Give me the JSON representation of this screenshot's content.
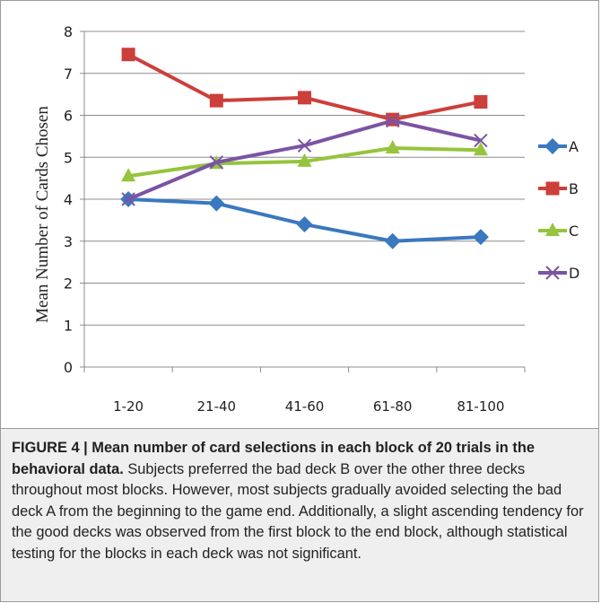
{
  "chart_data": {
    "type": "line",
    "title": "",
    "xlabel": "",
    "ylabel": "Mean Number of Cards Chosen",
    "categories": [
      "1-20",
      "21-40",
      "41-60",
      "61-80",
      "81-100"
    ],
    "ylim": [
      0,
      8
    ],
    "yticks": [
      "0",
      "1",
      "2",
      "3",
      "4",
      "5",
      "6",
      "7",
      "8"
    ],
    "grid": true,
    "legend_position": "right",
    "series": [
      {
        "name": "A",
        "values": [
          4.0,
          3.9,
          3.4,
          3.0,
          3.1
        ],
        "color": "#3a78c0",
        "marker": "diamond"
      },
      {
        "name": "B",
        "values": [
          7.45,
          6.35,
          6.42,
          5.9,
          6.32
        ],
        "color": "#cc3f3a",
        "marker": "square"
      },
      {
        "name": "C",
        "values": [
          4.55,
          4.85,
          4.9,
          5.22,
          5.17
        ],
        "color": "#96c43c",
        "marker": "triangle"
      },
      {
        "name": "D",
        "values": [
          4.0,
          4.88,
          5.28,
          5.87,
          5.4
        ],
        "color": "#7b54a3",
        "marker": "x"
      }
    ]
  },
  "caption": {
    "title": "FIGURE 4 | Mean number of card selections in each block of 20 trials in the behavioral data.",
    "body": " Subjects preferred the bad deck B over the other three decks throughout most blocks. However, most subjects gradually avoided selecting the bad deck A from the beginning to the game end. Additionally, a slight ascending tendency for the good decks was observed from the first block to the end block, although statistical testing for the blocks in each deck was not significant."
  }
}
